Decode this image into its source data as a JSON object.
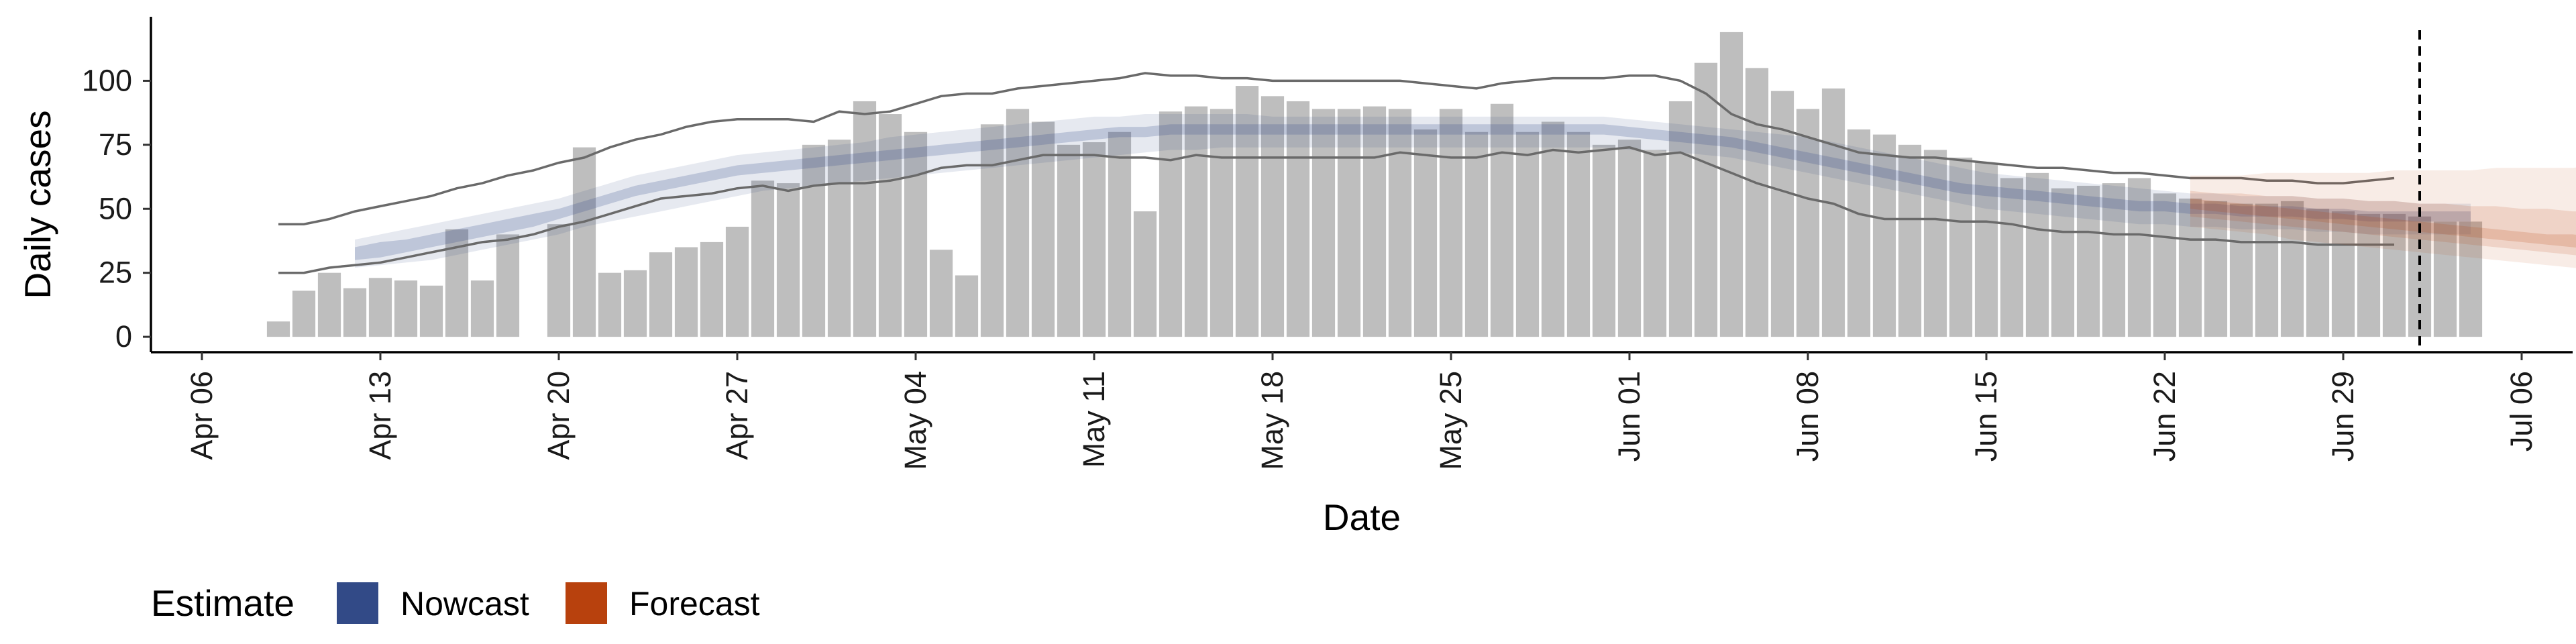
{
  "chart_data": {
    "type": "bar",
    "title": "",
    "xlabel": "Date",
    "ylabel": "Daily cases",
    "x_range": [
      "2020-04-04",
      "2020-07-08"
    ],
    "ylim": [
      -6,
      125
    ],
    "y_ticks": [
      0,
      25,
      50,
      75,
      100
    ],
    "x_ticks": [
      {
        "date": "2020-04-06",
        "label": "Apr 06"
      },
      {
        "date": "2020-04-13",
        "label": "Apr 13"
      },
      {
        "date": "2020-04-20",
        "label": "Apr 20"
      },
      {
        "date": "2020-04-27",
        "label": "Apr 27"
      },
      {
        "date": "2020-05-04",
        "label": "May 04"
      },
      {
        "date": "2020-05-11",
        "label": "May 11"
      },
      {
        "date": "2020-05-18",
        "label": "May 18"
      },
      {
        "date": "2020-05-25",
        "label": "May 25"
      },
      {
        "date": "2020-06-01",
        "label": "Jun 01"
      },
      {
        "date": "2020-06-08",
        "label": "Jun 08"
      },
      {
        "date": "2020-06-15",
        "label": "Jun 15"
      },
      {
        "date": "2020-06-22",
        "label": "Jun 22"
      },
      {
        "date": "2020-06-29",
        "label": "Jun 29"
      },
      {
        "date": "2020-07-06",
        "label": "Jul 06"
      }
    ],
    "grid": false,
    "bar_color": "#bebebe",
    "bars": {
      "start_date": "2020-04-09",
      "values": [
        6,
        18,
        25,
        19,
        23,
        22,
        20,
        42,
        22,
        40,
        0,
        44,
        74,
        25,
        26,
        33,
        35,
        37,
        43,
        61,
        60,
        75,
        77,
        92,
        87,
        80,
        34,
        24,
        83,
        89,
        84,
        75,
        76,
        80,
        49,
        88,
        90,
        89,
        98,
        94,
        92,
        89,
        89,
        90,
        89,
        81,
        89,
        80,
        91,
        80,
        84,
        80,
        75,
        77,
        73,
        92,
        107,
        119,
        105,
        96,
        89,
        97,
        81,
        79,
        75,
        73,
        70,
        68,
        62,
        64,
        58,
        59,
        60,
        62,
        56,
        54,
        53,
        52,
        52,
        53,
        50,
        49,
        48,
        48,
        47,
        45,
        45
      ],
      "values_note_zero_gap": true
    },
    "nowcast_band": {
      "start_date": "2020-04-12",
      "outer_lower": [
        27,
        28,
        29,
        30,
        32,
        34,
        36,
        38,
        40,
        43,
        45,
        47,
        49,
        51,
        53,
        55,
        57,
        58,
        59,
        60,
        61,
        62,
        63,
        64,
        65,
        66,
        67,
        68,
        69,
        70,
        71,
        72,
        73,
        73,
        74,
        74,
        74,
        74,
        74,
        74,
        74,
        74,
        74,
        74,
        74,
        74,
        74,
        74,
        74,
        74,
        73,
        73,
        72,
        71,
        70,
        68,
        66,
        64,
        62,
        60,
        58,
        56,
        54,
        52,
        50,
        49,
        48,
        47,
        46,
        45,
        44,
        44,
        43,
        43,
        42,
        42,
        42,
        41,
        41,
        40,
        40,
        40,
        40,
        40
      ],
      "outer_upper": [
        38,
        40,
        42,
        44,
        46,
        48,
        50,
        52,
        54,
        57,
        60,
        63,
        65,
        67,
        69,
        71,
        72,
        73,
        74,
        75,
        76,
        78,
        79,
        80,
        81,
        82,
        83,
        84,
        85,
        86,
        86,
        87,
        87,
        87,
        87,
        87,
        86,
        86,
        86,
        86,
        86,
        86,
        86,
        86,
        86,
        86,
        86,
        86,
        86,
        86,
        85,
        84,
        83,
        82,
        81,
        80,
        79,
        78,
        76,
        74,
        72,
        70,
        68,
        66,
        64,
        63,
        62,
        61,
        60,
        59,
        58,
        57,
        56,
        56,
        55,
        55,
        55,
        54,
        54,
        53,
        53,
        52,
        52,
        52
      ],
      "inner_lower": [
        30,
        31,
        33,
        35,
        37,
        39,
        41,
        43,
        46,
        49,
        52,
        55,
        57,
        59,
        61,
        63,
        64,
        65,
        66,
        67,
        68,
        69,
        70,
        71,
        72,
        73,
        74,
        75,
        76,
        77,
        78,
        78,
        79,
        79,
        79,
        79,
        79,
        79,
        79,
        79,
        79,
        79,
        79,
        79,
        79,
        79,
        79,
        79,
        79,
        79,
        78,
        77,
        76,
        75,
        74,
        72,
        70,
        68,
        66,
        64,
        62,
        60,
        58,
        56,
        55,
        54,
        53,
        52,
        51,
        50,
        49,
        49,
        48,
        48,
        47,
        47,
        47,
        46,
        46,
        45,
        45,
        45,
        45,
        45
      ],
      "inner_upper": [
        35,
        37,
        38,
        40,
        42,
        44,
        46,
        48,
        50,
        53,
        56,
        59,
        61,
        63,
        65,
        67,
        68,
        69,
        70,
        71,
        72,
        73,
        74,
        75,
        76,
        77,
        78,
        79,
        80,
        81,
        82,
        82,
        83,
        83,
        83,
        83,
        83,
        83,
        83,
        83,
        83,
        83,
        83,
        83,
        83,
        83,
        83,
        83,
        83,
        83,
        82,
        81,
        80,
        79,
        78,
        76,
        74,
        72,
        70,
        68,
        66,
        64,
        62,
        60,
        59,
        58,
        57,
        56,
        55,
        54,
        53,
        53,
        52,
        52,
        51,
        51,
        51,
        50,
        50,
        49,
        49,
        49,
        49,
        49
      ],
      "fill": "#324a87"
    },
    "nowcast_lines": {
      "start_date": "2020-04-09",
      "upper": [
        44,
        44,
        46,
        49,
        51,
        53,
        55,
        58,
        60,
        63,
        65,
        68,
        70,
        74,
        77,
        79,
        82,
        84,
        85,
        85,
        85,
        84,
        88,
        87,
        88,
        91,
        94,
        95,
        95,
        97,
        98,
        99,
        100,
        101,
        103,
        102,
        102,
        101,
        101,
        100,
        100,
        100,
        100,
        100,
        100,
        99,
        98,
        97,
        99,
        100,
        101,
        101,
        101,
        102,
        102,
        100,
        95,
        87,
        83,
        81,
        78,
        75,
        72,
        71,
        70,
        70,
        69,
        68,
        67,
        66,
        66,
        65,
        64,
        64,
        63,
        62,
        62,
        62,
        61,
        61,
        60,
        60,
        61,
        62
      ],
      "lower": [
        25,
        25,
        27,
        28,
        29,
        31,
        33,
        35,
        37,
        38,
        40,
        43,
        45,
        48,
        51,
        54,
        55,
        56,
        58,
        59,
        57,
        59,
        60,
        60,
        61,
        63,
        66,
        67,
        67,
        69,
        71,
        71,
        71,
        70,
        70,
        69,
        71,
        70,
        70,
        70,
        70,
        70,
        70,
        70,
        72,
        71,
        70,
        70,
        72,
        71,
        73,
        72,
        73,
        74,
        71,
        72,
        68,
        64,
        60,
        57,
        54,
        52,
        48,
        46,
        46,
        46,
        45,
        45,
        44,
        42,
        41,
        41,
        40,
        40,
        39,
        38,
        38,
        37,
        37,
        37,
        36,
        36,
        36,
        36
      ],
      "stroke": "#6a6a6a"
    },
    "forecast_band": {
      "start_date": "2020-06-23",
      "outer_lower": [
        43,
        42,
        41,
        40,
        38,
        37,
        36,
        35,
        34,
        33,
        32,
        31,
        30,
        29,
        28,
        27,
        26,
        25,
        24,
        23,
        22
      ],
      "outer_upper": [
        63,
        63,
        63,
        64,
        64,
        64,
        64,
        64,
        65,
        65,
        65,
        65,
        66,
        66,
        66,
        66,
        67,
        67,
        67,
        67,
        67
      ],
      "inner_lower": [
        47,
        46,
        45,
        44,
        43,
        42,
        41,
        40,
        39,
        38,
        37,
        36,
        35,
        34,
        33,
        32,
        31,
        30,
        29,
        28,
        27
      ],
      "inner_upper": [
        57,
        56,
        56,
        55,
        55,
        54,
        54,
        53,
        53,
        52,
        52,
        51,
        51,
        50,
        50,
        49,
        49,
        48,
        48,
        47,
        47
      ],
      "median_lower": [
        50,
        49,
        48,
        47,
        46,
        45,
        44,
        43,
        42,
        41,
        40,
        39,
        38,
        37,
        36,
        35,
        34,
        33,
        32,
        31,
        30
      ],
      "median_upper": [
        54,
        53,
        52,
        51,
        50,
        49,
        48,
        47,
        46,
        45,
        44,
        43,
        42,
        41,
        40,
        40,
        39,
        38,
        37,
        36,
        35
      ],
      "fill": "#b8410d"
    },
    "vline": {
      "date": "2020-07-02",
      "style": "dashed"
    },
    "legend": {
      "title": "Estimate",
      "placement": "bottom-left",
      "items": [
        {
          "name": "Nowcast",
          "color": "#324a87"
        },
        {
          "name": "Forecast",
          "color": "#b8410d"
        }
      ]
    }
  }
}
